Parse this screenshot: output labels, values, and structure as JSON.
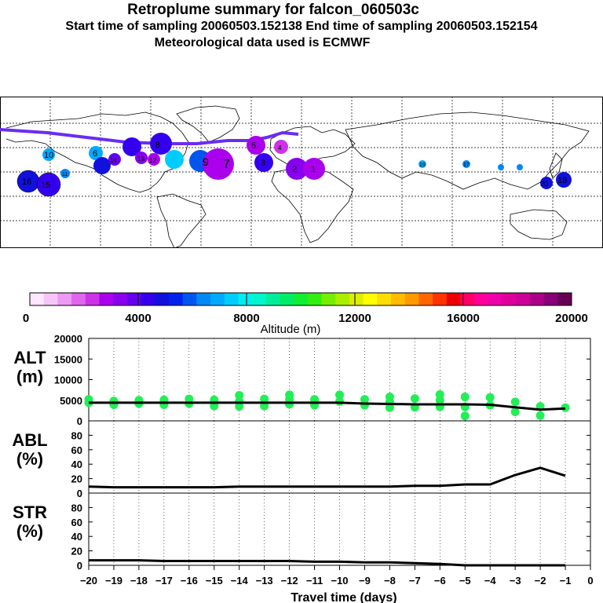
{
  "header": {
    "title": "Retroplume summary for falcon_060503c",
    "sampling_line": "Start time of sampling 20060503.152138     End time of sampling 20060503.152154",
    "met_line": "Meteorological data used is ECMWF"
  },
  "colors": {
    "scale": [
      "#ffe6ff",
      "#f7c4fa",
      "#ee99f3",
      "#e066ee",
      "#cc33e6",
      "#aa00ee",
      "#8800ee",
      "#6600ee",
      "#3300ee",
      "#1111dd",
      "#0022ee",
      "#0055ee",
      "#0088f5",
      "#00aaff",
      "#00ccff",
      "#00eeee",
      "#00f5cc",
      "#00ee99",
      "#00ee66",
      "#11ee33",
      "#33ee11",
      "#77ee00",
      "#aaee00",
      "#ddee00",
      "#ffff00",
      "#ffdd00",
      "#ffbb00",
      "#ff9900",
      "#ff6600",
      "#ff3300",
      "#ee0000",
      "#ff0066",
      "#ff0099",
      "#ee00aa",
      "#dd0099",
      "#cc0099",
      "#aa0088",
      "#880077",
      "#660055"
    ],
    "plume": "#22ee55",
    "line": "#000000"
  },
  "colorbar": {
    "label": "Altitude (m)",
    "tick_labels": [
      "0",
      "4000",
      "8000",
      "12000",
      "16000",
      "20000"
    ]
  },
  "map_labels": [
    {
      "text": "10",
      "cls": "k"
    },
    {
      "text": "16",
      "cls": "k"
    },
    {
      "text": "15",
      "cls": "k"
    },
    {
      "text": "11",
      "cls": "k"
    },
    {
      "text": "6",
      "cls": "k"
    },
    {
      "text": "14",
      "cls": "k"
    },
    {
      "text": "13",
      "cls": "k"
    },
    {
      "text": "12",
      "cls": "k"
    },
    {
      "text": "8",
      "cls": "k"
    },
    {
      "text": "7",
      "cls": "k"
    },
    {
      "text": "9",
      "cls": "k"
    },
    {
      "text": "5",
      "cls": "k"
    },
    {
      "text": "4",
      "cls": "k"
    },
    {
      "text": "3",
      "cls": "k"
    },
    {
      "text": "2",
      "cls": "k"
    },
    {
      "text": "1",
      "cls": "k"
    },
    {
      "text": "20",
      "cls": "k"
    },
    {
      "text": "18",
      "cls": "k"
    },
    {
      "text": "19",
      "cls": "k"
    },
    {
      "text": "17",
      "cls": "k"
    }
  ],
  "chart_data": [
    {
      "type": "scatter",
      "panel": "ALT",
      "ylabel": "ALT\n(m)",
      "ylabel_lines": [
        "ALT",
        "(m)"
      ],
      "ylim": [
        0,
        20000
      ],
      "yticks": [
        0,
        5000,
        10000,
        15000,
        20000
      ],
      "ytick_labels": [
        "0",
        "5000",
        "10000",
        "15000",
        "20000"
      ],
      "median_line": {
        "x": [
          -20,
          -19,
          -18,
          -17,
          -16,
          -15,
          -14,
          -13,
          -12,
          -11,
          -10,
          -9,
          -8,
          -7,
          -6,
          -5,
          -4,
          -3,
          -2,
          -1
        ],
        "y": [
          4400,
          4400,
          4400,
          4400,
          4400,
          4400,
          4400,
          4400,
          4400,
          4400,
          4400,
          4200,
          4100,
          4000,
          4000,
          4000,
          3900,
          3300,
          2700,
          3000
        ]
      },
      "plume_points": [
        {
          "x": -20,
          "y": 4400
        },
        {
          "x": -20,
          "y": 5200
        },
        {
          "x": -19,
          "y": 3900
        },
        {
          "x": -19,
          "y": 4800
        },
        {
          "x": -18,
          "y": 4200
        },
        {
          "x": -18,
          "y": 5000
        },
        {
          "x": -17,
          "y": 3900
        },
        {
          "x": -17,
          "y": 5100
        },
        {
          "x": -16,
          "y": 4200
        },
        {
          "x": -16,
          "y": 5300
        },
        {
          "x": -15,
          "y": 3600
        },
        {
          "x": -15,
          "y": 5100
        },
        {
          "x": -14,
          "y": 3500
        },
        {
          "x": -14,
          "y": 4700
        },
        {
          "x": -14,
          "y": 6200
        },
        {
          "x": -13,
          "y": 3600
        },
        {
          "x": -13,
          "y": 5300
        },
        {
          "x": -12,
          "y": 4000
        },
        {
          "x": -12,
          "y": 5200
        },
        {
          "x": -12,
          "y": 6300
        },
        {
          "x": -11,
          "y": 3800
        },
        {
          "x": -11,
          "y": 5200
        },
        {
          "x": -10,
          "y": 4700
        },
        {
          "x": -10,
          "y": 6300
        },
        {
          "x": -9,
          "y": 3800
        },
        {
          "x": -9,
          "y": 5200
        },
        {
          "x": -8,
          "y": 3200
        },
        {
          "x": -8,
          "y": 4600
        },
        {
          "x": -8,
          "y": 5800
        },
        {
          "x": -7,
          "y": 3300
        },
        {
          "x": -7,
          "y": 5400
        },
        {
          "x": -6,
          "y": 3400
        },
        {
          "x": -6,
          "y": 5000
        },
        {
          "x": -6,
          "y": 6400
        },
        {
          "x": -5,
          "y": 3400
        },
        {
          "x": -5,
          "y": 5800
        },
        {
          "x": -5,
          "y": 1200
        },
        {
          "x": -4,
          "y": 3800
        },
        {
          "x": -4,
          "y": 5700
        },
        {
          "x": -3,
          "y": 2200
        },
        {
          "x": -3,
          "y": 4600
        },
        {
          "x": -2,
          "y": 1300
        },
        {
          "x": -2,
          "y": 3500
        },
        {
          "x": -1,
          "y": 3200
        }
      ]
    },
    {
      "type": "line",
      "panel": "ABL",
      "ylabel": "ABL\n(%)",
      "ylabel_lines": [
        "ABL",
        "(%)"
      ],
      "ylim": [
        0,
        100
      ],
      "yticks": [
        0,
        20,
        40,
        60,
        80
      ],
      "ytick_labels": [
        "0",
        "20",
        "40",
        "60",
        "80"
      ],
      "x": [
        -20,
        -19,
        -18,
        -17,
        -16,
        -15,
        -14,
        -13,
        -12,
        -11,
        -10,
        -9,
        -8,
        -7,
        -6,
        -5,
        -4,
        -3,
        -2,
        -1
      ],
      "y": [
        9,
        8,
        8,
        8,
        8,
        8,
        9,
        9,
        9,
        9,
        9,
        9,
        9,
        10,
        10,
        12,
        12,
        25,
        35,
        24
      ]
    },
    {
      "type": "line",
      "panel": "STR",
      "ylabel": "STR\n(%)",
      "ylabel_lines": [
        "STR",
        "(%)"
      ],
      "ylim": [
        0,
        100
      ],
      "yticks": [
        0,
        20,
        40,
        60,
        80
      ],
      "ytick_labels": [
        "0",
        "20",
        "40",
        "60",
        "80"
      ],
      "x": [
        -20,
        -19,
        -18,
        -17,
        -16,
        -15,
        -14,
        -13,
        -12,
        -11,
        -10,
        -9,
        -8,
        -7,
        -6,
        -5,
        -4,
        -3,
        -2,
        -1
      ],
      "y": [
        7,
        7,
        7,
        6,
        6,
        6,
        6,
        6,
        6,
        5,
        5,
        4,
        4,
        3,
        2,
        0,
        0,
        0,
        0,
        0
      ]
    }
  ],
  "xaxis": {
    "xlim": [
      -20,
      0
    ],
    "xticks": [
      -20,
      -19,
      -18,
      -17,
      -16,
      -15,
      -14,
      -13,
      -12,
      -11,
      -10,
      -9,
      -8,
      -7,
      -6,
      -5,
      -4,
      -3,
      -2,
      -1,
      0
    ],
    "xtick_labels": [
      "−20",
      "−19",
      "−18",
      "−17",
      "−16",
      "−15",
      "−14",
      "−13",
      "−12",
      "−11",
      "−10",
      "−9",
      "−8",
      "−7",
      "−6",
      "−5",
      "−4",
      "−3",
      "−2",
      "−1",
      "0"
    ],
    "label": "Travel time (days)"
  }
}
